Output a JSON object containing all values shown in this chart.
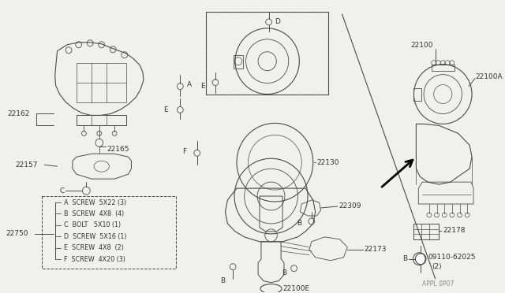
{
  "bg_color": "#f0f0ec",
  "line_color": "#4a4a4a",
  "text_color": "#333333",
  "footer": "APPL 0P07",
  "legend_lines": [
    [
      "A",
      "SCREW",
      "5X22",
      "(3)"
    ],
    [
      "B",
      "SCREW",
      "4X8 ",
      "(4)"
    ],
    [
      "C",
      "BOLT ",
      "5X10",
      "(1)"
    ],
    [
      "D",
      "SCREW",
      "5X16",
      "(1)"
    ],
    [
      "E",
      "SCREW",
      "4X8 ",
      "(2)"
    ],
    [
      "F",
      "SCREW",
      "4X20",
      "(3)"
    ]
  ]
}
